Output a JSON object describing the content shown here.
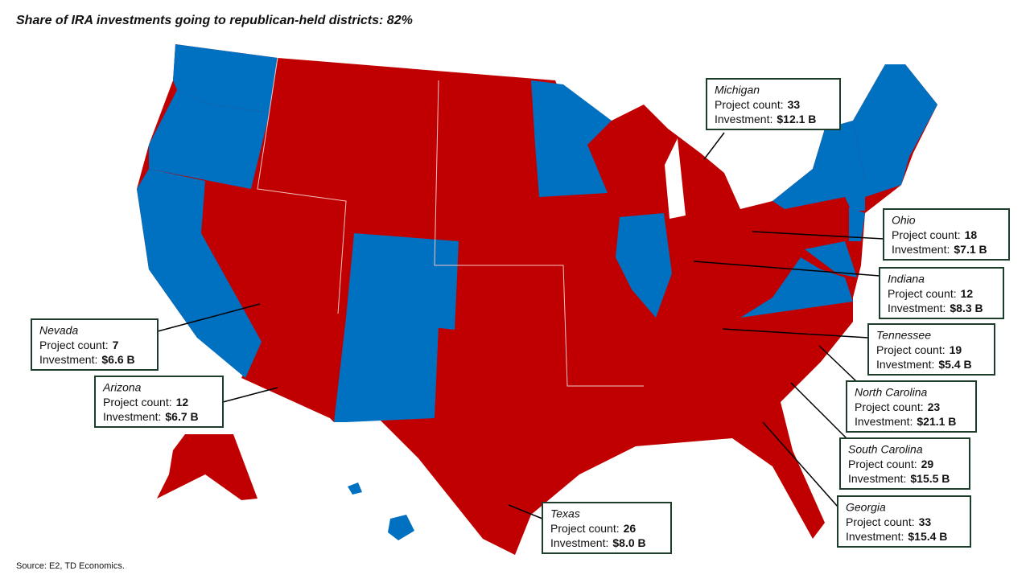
{
  "title": "Share of IRA investments going to republican-held districts: 82%",
  "source": "Source: E2, TD Economics.",
  "callouts": [
    {
      "state": "Michigan",
      "project_label": "Project count:",
      "project_count": 33,
      "investment_label": "Investment:",
      "investment": "$12.1 B"
    },
    {
      "state": "Ohio",
      "project_label": "Project count:",
      "project_count": 18,
      "investment_label": "Investment:",
      "investment": "$7.1 B"
    },
    {
      "state": "Indiana",
      "project_label": "Project count:",
      "project_count": 12,
      "investment_label": "Investment:",
      "investment": "$8.3 B"
    },
    {
      "state": "Tennessee",
      "project_label": "Project count:",
      "project_count": 19,
      "investment_label": "Investment:",
      "investment": "$5.4 B"
    },
    {
      "state": "North Carolina",
      "project_label": "Project count:",
      "project_count": 23,
      "investment_label": "Investment:",
      "investment": "$21.1 B"
    },
    {
      "state": "South Carolina",
      "project_label": "Project count:",
      "project_count": 29,
      "investment_label": "Investment:",
      "investment": "$15.5 B"
    },
    {
      "state": "Georgia",
      "project_label": "Project count:",
      "project_count": 33,
      "investment_label": "Investment:",
      "investment": "$15.4 B"
    },
    {
      "state": "Texas",
      "project_label": "Project count:",
      "project_count": 26,
      "investment_label": "Investment:",
      "investment": "$8.0 B"
    },
    {
      "state": "Arizona",
      "project_label": "Project count:",
      "project_count": 12,
      "investment_label": "Investment:",
      "investment": "$6.7 B"
    },
    {
      "state": "Nevada",
      "project_label": "Project count:",
      "project_count": 7,
      "investment_label": "Investment:",
      "investment": "$6.6 B"
    }
  ]
}
